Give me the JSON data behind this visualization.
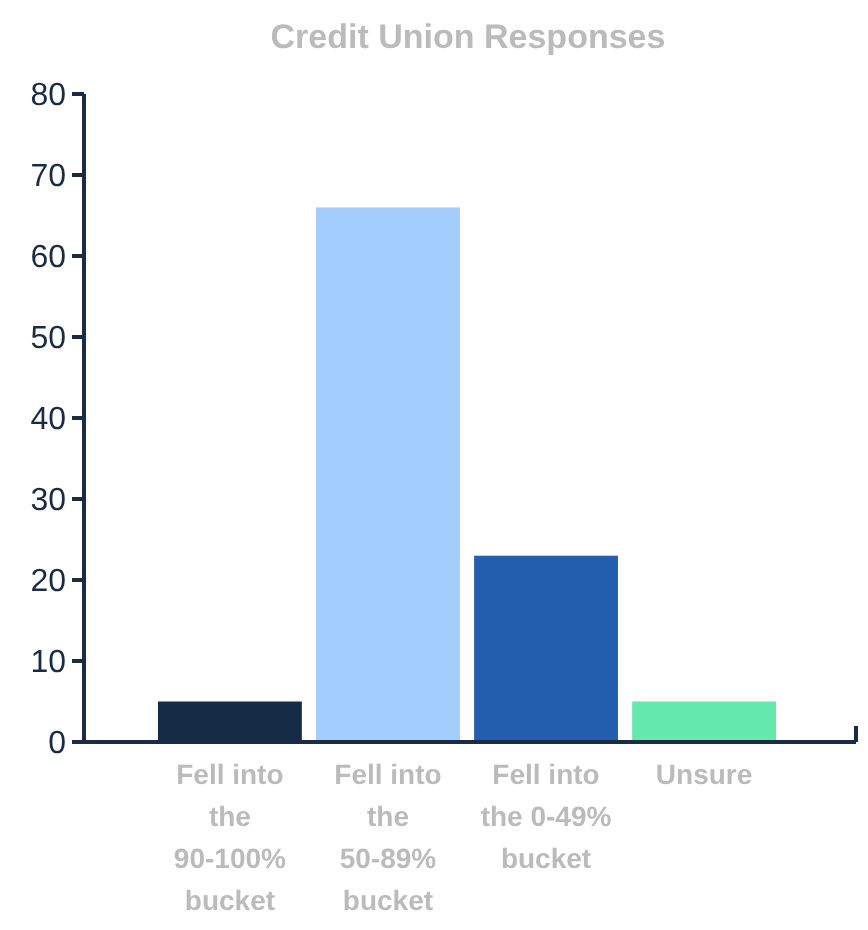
{
  "chart_data": {
    "type": "bar",
    "title": "Credit Union Responses",
    "categories": [
      "Fell into the 90-100% bucket",
      "Fell into the 50-89% bucket",
      "Fell into the 0-49% bucket",
      "Unsure"
    ],
    "values": [
      5,
      66,
      23,
      5
    ],
    "colors": [
      "#152c47",
      "#a3cdfc",
      "#245eae",
      "#64e8ab"
    ],
    "ylim": [
      0,
      80
    ],
    "yticks": [
      0,
      10,
      20,
      30,
      40,
      50,
      60,
      70,
      80
    ],
    "grid": false
  }
}
